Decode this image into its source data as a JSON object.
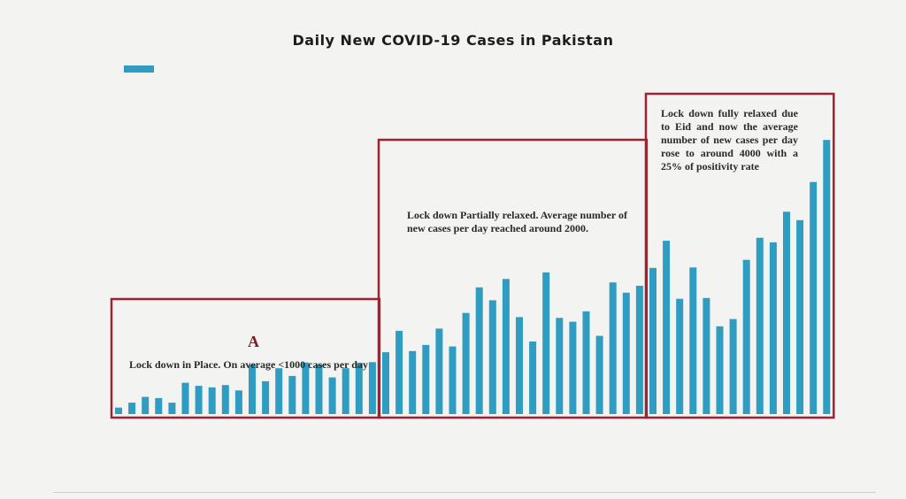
{
  "chart_data": {
    "type": "bar",
    "title": "Daily New COVID-19 Cases in Pakistan",
    "xlabel": "",
    "ylabel": "",
    "ylim": [
      0,
      7000
    ],
    "grid": false,
    "legend_position": "top-left",
    "bar_color": "#2f9cc1",
    "frame_color": "#a32030",
    "values": [
      170,
      300,
      450,
      420,
      300,
      820,
      740,
      700,
      760,
      620,
      1300,
      860,
      1200,
      1000,
      1350,
      1300,
      960,
      1200,
      1340,
      1360,
      1620,
      2180,
      1650,
      1810,
      2240,
      1770,
      2650,
      3320,
      2980,
      3540,
      2540,
      1900,
      3710,
      2520,
      2420,
      2690,
      2050,
      3450,
      3180,
      3360,
      3830,
      4540,
      3020,
      3840,
      3040,
      2300,
      2490,
      4040,
      4620,
      4500,
      5300,
      5080,
      6080,
      7180
    ],
    "annotations": [
      {
        "label": "A",
        "text": "Lock down in Place. On average <1000 cases per day",
        "start_bar": 0,
        "end_bar": 19
      },
      {
        "label": "",
        "text": "Lock down Partially relaxed. Average number of new cases per day reached around 2000.",
        "start_bar": 20,
        "end_bar": 39
      },
      {
        "label": "",
        "text": "Lock down fully relaxed due to Eid and now the average number of new cases per day rose to around 4000 with a 25% of positivity rate",
        "start_bar": 40,
        "end_bar": 53
      }
    ]
  }
}
